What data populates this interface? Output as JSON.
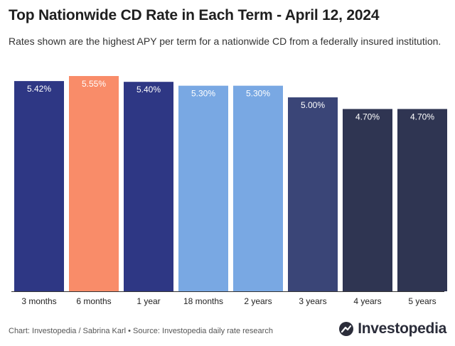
{
  "title": "Top Nationwide CD Rate in Each Term - April 12, 2024",
  "subtitle": "Rates shown are the highest APY per term for a nationwide CD from a federally insured institution.",
  "footer": "Chart: Investopedia / Sabrina Karl • Source: Investopedia daily rate research",
  "logo_text": "Investopedia",
  "chart_data": {
    "type": "bar",
    "categories": [
      "3 months",
      "6 months",
      "1 year",
      "18 months",
      "2 years",
      "3 years",
      "4 years",
      "5 years"
    ],
    "values": [
      5.42,
      5.55,
      5.4,
      5.3,
      5.3,
      5.0,
      4.7,
      4.7
    ],
    "data_labels": [
      "5.42%",
      "5.55%",
      "5.40%",
      "5.30%",
      "5.30%",
      "5.00%",
      "4.70%",
      "4.70%"
    ],
    "colors": [
      "#2e3784",
      "#f98c69",
      "#2e3784",
      "#79a8e3",
      "#79a8e3",
      "#3a4577",
      "#2f3552",
      "#2f3552"
    ],
    "ylim": [
      0,
      5.55
    ],
    "grid": false,
    "legend": "none"
  }
}
